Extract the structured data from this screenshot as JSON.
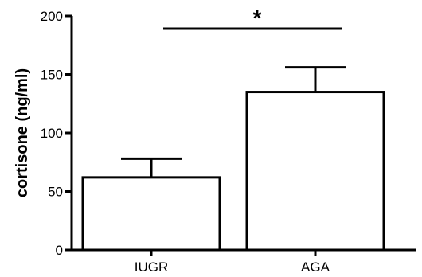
{
  "chart_data": {
    "type": "bar",
    "categories": [
      "IUGR",
      "AGA"
    ],
    "values": [
      62,
      135
    ],
    "error_upper": [
      78,
      156
    ],
    "ylabel": "cortisone (ng/ml)",
    "xlabel": "",
    "ylim": [
      0,
      200
    ],
    "yticks": [
      0,
      50,
      100,
      150,
      200
    ],
    "ytick_labels": [
      "0",
      "50",
      "100",
      "150",
      "200"
    ],
    "significance": {
      "between": [
        "IUGR",
        "AGA"
      ],
      "label": "*"
    },
    "grid": false,
    "bar_fill": "#ffffff",
    "bar_stroke": "#000000"
  }
}
